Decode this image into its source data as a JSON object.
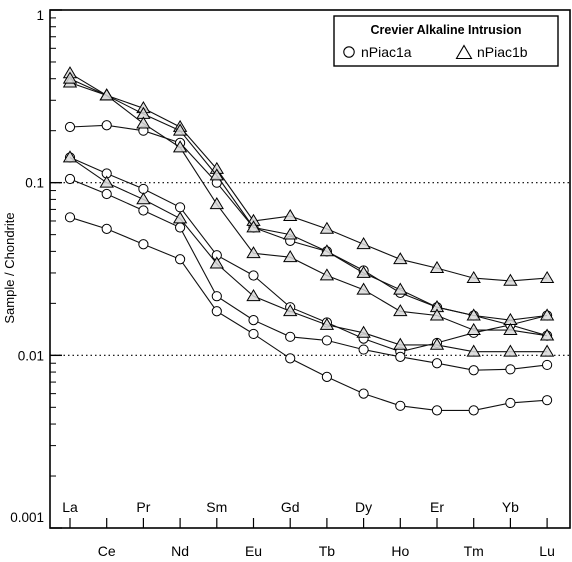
{
  "chart_data": {
    "type": "line",
    "ylabel": "Sample / Chondrite",
    "yscale": "log",
    "ylim": [
      0.001,
      1
    ],
    "y_ticks": [
      "1",
      "0.1",
      "0.01",
      "0.001"
    ],
    "reference_lines": [
      0.1,
      0.01
    ],
    "categories": [
      "La",
      "Ce",
      "Pr",
      "Nd",
      "Sm",
      "Eu",
      "Gd",
      "Tb",
      "Dy",
      "Ho",
      "Er",
      "Tm",
      "Yb",
      "Lu"
    ],
    "legend": {
      "title": "Crevier Alkaline Intrusion",
      "entries": [
        {
          "label": "nPiac1a",
          "marker": "circle"
        },
        {
          "label": "nPiac1b",
          "marker": "triangle"
        }
      ],
      "position": "top-right"
    },
    "series": [
      {
        "group": "nPiac1a",
        "marker": "circle",
        "values": [
          0.21,
          0.215,
          0.2,
          0.17,
          0.1,
          0.055,
          0.046,
          0.04,
          0.031,
          0.023,
          0.019,
          0.017,
          0.015,
          0.013
        ]
      },
      {
        "group": "nPiac1a",
        "marker": "circle",
        "values": [
          0.14,
          0.113,
          0.092,
          0.072,
          0.038,
          0.029,
          0.019,
          0.0155,
          0.0125,
          0.0105,
          0.0118,
          0.0135,
          0.015,
          0.017
        ]
      },
      {
        "group": "nPiac1a",
        "marker": "circle",
        "values": [
          0.105,
          0.086,
          0.069,
          0.055,
          0.022,
          0.016,
          0.0128,
          0.0122,
          0.0108,
          0.0098,
          0.009,
          0.0082,
          0.0083,
          0.0088
        ]
      },
      {
        "group": "nPiac1a",
        "marker": "circle",
        "values": [
          0.063,
          0.054,
          0.044,
          0.036,
          0.018,
          0.0133,
          0.0096,
          0.0075,
          0.006,
          0.0051,
          0.0048,
          0.0048,
          0.0053,
          0.0055
        ]
      },
      {
        "group": "nPiac1b",
        "marker": "triangle",
        "values": [
          0.43,
          0.32,
          0.27,
          0.21,
          0.12,
          0.06,
          0.064,
          0.054,
          0.044,
          0.036,
          0.032,
          0.028,
          0.027,
          0.028
        ]
      },
      {
        "group": "nPiac1b",
        "marker": "triangle",
        "values": [
          0.38,
          0.32,
          0.25,
          0.2,
          0.11,
          0.055,
          0.05,
          0.04,
          0.03,
          0.024,
          0.019,
          0.017,
          0.016,
          0.017
        ]
      },
      {
        "group": "nPiac1b",
        "marker": "triangle",
        "values": [
          0.4,
          0.32,
          0.22,
          0.16,
          0.075,
          0.039,
          0.037,
          0.029,
          0.024,
          0.018,
          0.017,
          0.014,
          0.014,
          0.013
        ]
      },
      {
        "group": "nPiac1b",
        "marker": "triangle",
        "values": [
          0.14,
          0.1,
          0.08,
          0.062,
          0.034,
          0.022,
          0.018,
          0.015,
          0.0135,
          0.0115,
          0.0115,
          0.0105,
          0.0105,
          0.0105
        ]
      }
    ]
  }
}
